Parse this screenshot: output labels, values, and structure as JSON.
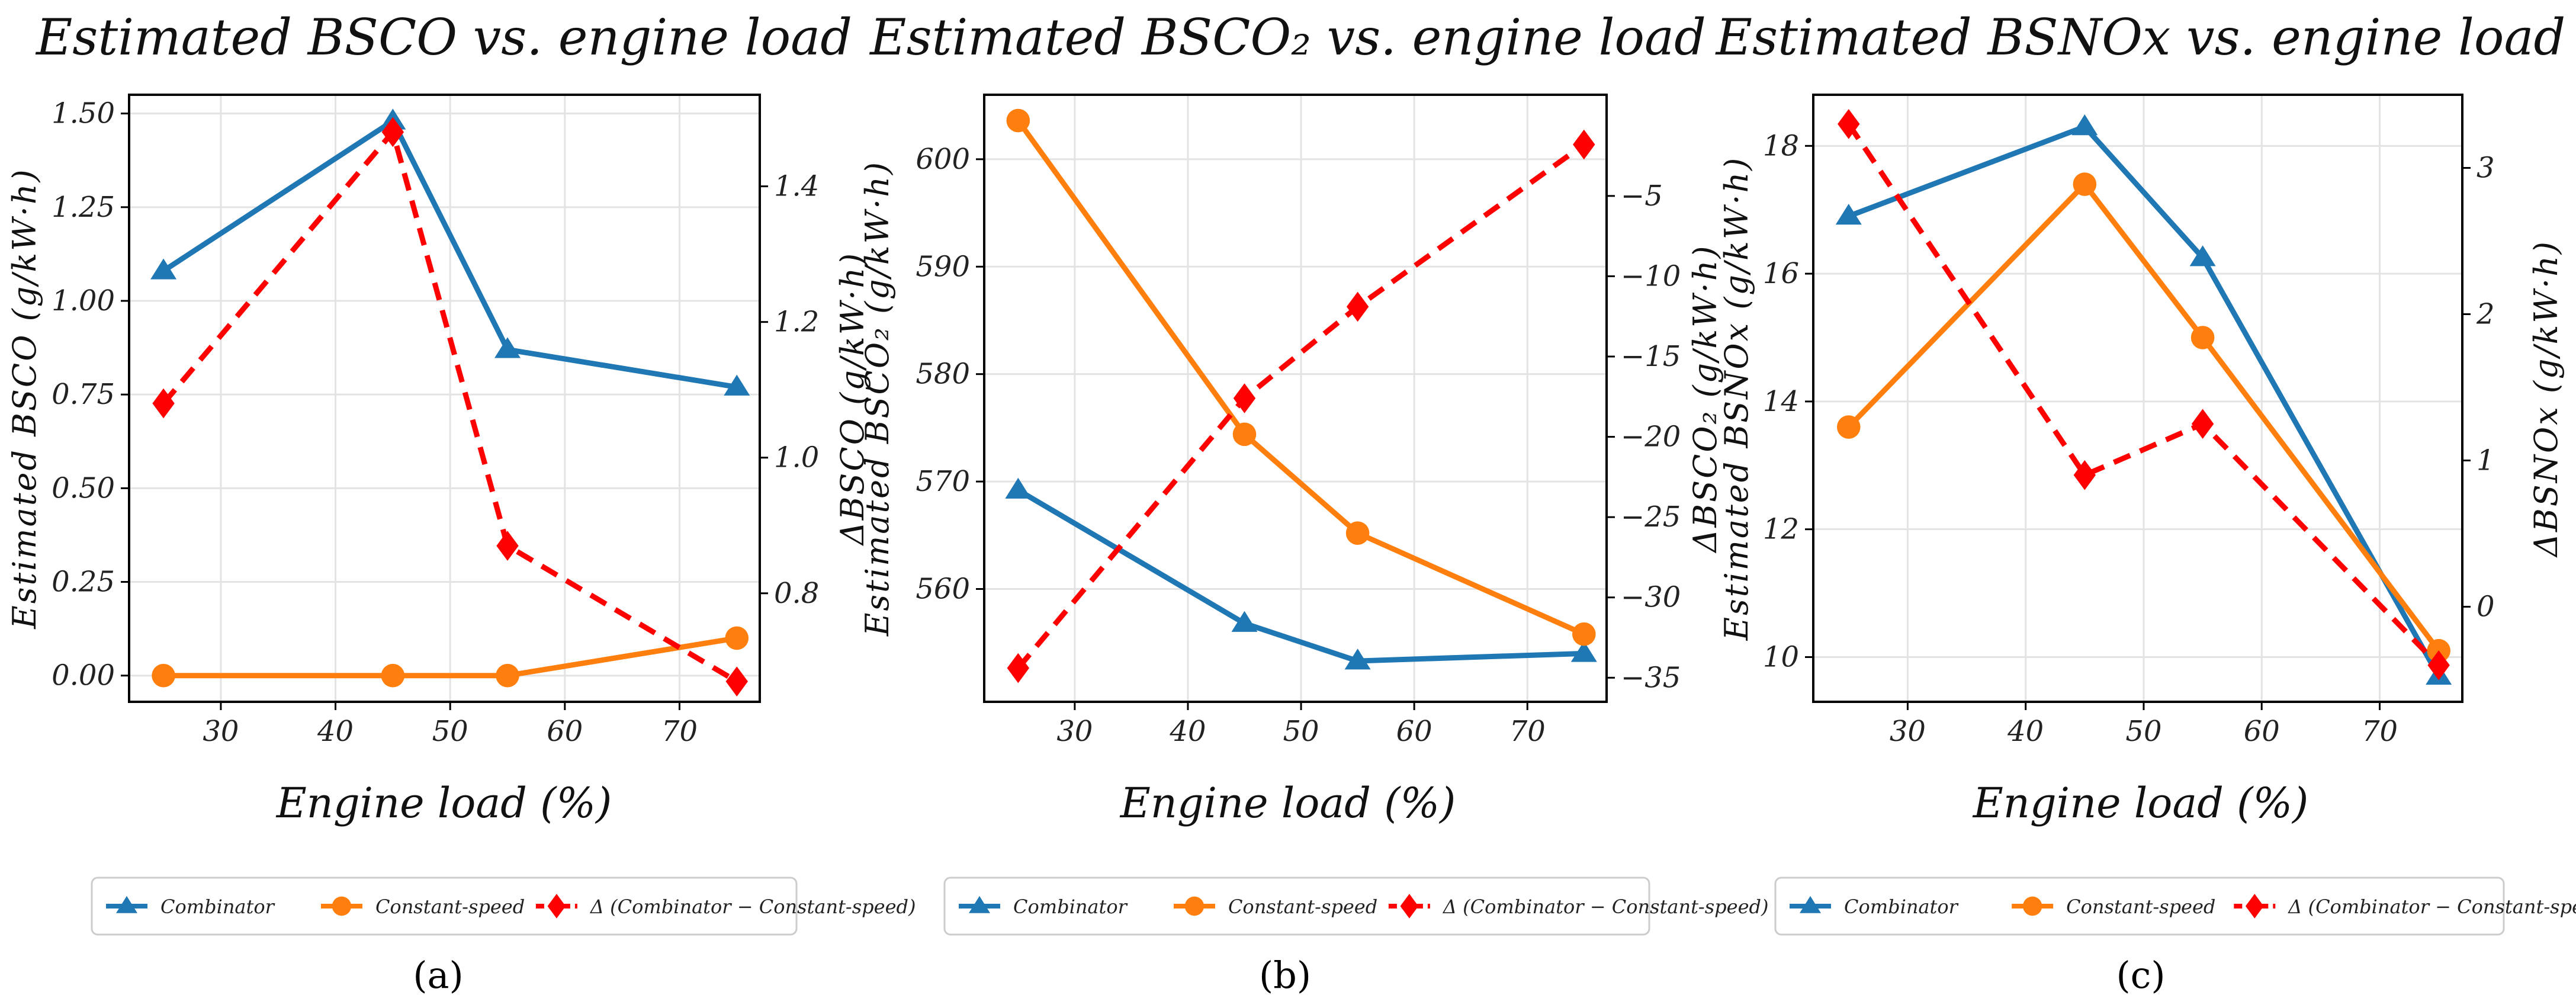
{
  "chart_data": [
    {
      "type": "line",
      "title": "Estimated BSCO vs. engine load",
      "xlabel": "Engine load (%)",
      "ylabel": "Estimated BSCO (g/kW·h)",
      "y2label": "ΔBSCO (g/kW·h)",
      "panel_label": "(a)",
      "x": [
        25,
        45,
        55,
        75
      ],
      "xlim": [
        22,
        77
      ],
      "xticks": [
        30,
        40,
        50,
        60,
        70
      ],
      "ylim": [
        -0.07,
        1.55
      ],
      "yticks": [
        0.0,
        0.25,
        0.5,
        0.75,
        1.0,
        1.25,
        1.5
      ],
      "ytick_labels": [
        "0.00",
        "0.25",
        "0.50",
        "0.75",
        "1.00",
        "1.25",
        "1.50"
      ],
      "y2lim": [
        0.64,
        1.535
      ],
      "y2ticks": [
        0.8,
        1.0,
        1.2,
        1.4
      ],
      "y2tick_labels": [
        "0.8",
        "1.0",
        "1.2",
        "1.4"
      ],
      "series": [
        {
          "name": "Combinator",
          "axis": "left",
          "values": [
            1.08,
            1.48,
            0.87,
            0.77
          ]
        },
        {
          "name": "Constant-speed",
          "axis": "left",
          "values": [
            0.0,
            0.0,
            0.0,
            0.1
          ]
        },
        {
          "name": "Δ (Combinator − Constant-speed)",
          "axis": "right",
          "values": [
            1.08,
            1.48,
            0.87,
            0.67
          ]
        }
      ],
      "grid": true,
      "legend_position": "bottom"
    },
    {
      "type": "line",
      "title": "Estimated BSCO₂ vs. engine load",
      "xlabel": "Engine load (%)",
      "ylabel": "Estimated BSCO₂ (g/kW·h)",
      "y2label": "ΔBSCO₂ (g/kW·h)",
      "panel_label": "(b)",
      "x": [
        25,
        45,
        55,
        75
      ],
      "xlim": [
        22,
        77
      ],
      "xticks": [
        30,
        40,
        50,
        60,
        70
      ],
      "ylim": [
        549.5,
        606
      ],
      "yticks": [
        560,
        570,
        580,
        590,
        600
      ],
      "ytick_labels": [
        "560",
        "570",
        "580",
        "590",
        "600"
      ],
      "y2lim": [
        -36.5,
        1.3
      ],
      "y2ticks": [
        -35,
        -30,
        -25,
        -20,
        -15,
        -10,
        -5
      ],
      "y2tick_labels": [
        "−35",
        "−30",
        "−25",
        "−20",
        "−15",
        "−10",
        "−5"
      ],
      "series": [
        {
          "name": "Combinator",
          "axis": "left",
          "values": [
            569.2,
            556.8,
            553.3,
            554.0
          ]
        },
        {
          "name": "Constant-speed",
          "axis": "left",
          "values": [
            603.6,
            574.4,
            565.2,
            555.8
          ]
        },
        {
          "name": "Δ (Combinator − Constant-speed)",
          "axis": "right",
          "values": [
            -34.4,
            -17.6,
            -11.9,
            -1.8
          ]
        }
      ],
      "grid": true,
      "legend_position": "bottom"
    },
    {
      "type": "line",
      "title": "Estimated BSNOx vs. engine load",
      "xlabel": "Engine load (%)",
      "ylabel": "Estimated BSNOx (g/kW·h)",
      "y2label": "ΔBSNOx (g/kW·h)",
      "panel_label": "(c)",
      "x": [
        25,
        45,
        55,
        75
      ],
      "xlim": [
        22,
        77
      ],
      "xticks": [
        30,
        40,
        50,
        60,
        70
      ],
      "ylim": [
        9.3,
        18.8
      ],
      "yticks": [
        10,
        12,
        14,
        16,
        18
      ],
      "ytick_labels": [
        "10",
        "12",
        "14",
        "16",
        "18"
      ],
      "y2lim": [
        -0.65,
        3.5
      ],
      "y2ticks": [
        0,
        1,
        2,
        3
      ],
      "y2tick_labels": [
        "0",
        "1",
        "2",
        "3"
      ],
      "series": [
        {
          "name": "Combinator",
          "axis": "left",
          "values": [
            16.9,
            18.3,
            16.25,
            9.7
          ]
        },
        {
          "name": "Constant-speed",
          "axis": "left",
          "values": [
            13.6,
            17.4,
            15.0,
            10.1
          ]
        },
        {
          "name": "Δ (Combinator − Constant-speed)",
          "axis": "right",
          "values": [
            3.3,
            0.9,
            1.25,
            -0.4
          ]
        }
      ],
      "grid": true,
      "legend_position": "bottom"
    }
  ],
  "legend": {
    "items": [
      "Combinator",
      "Constant-speed",
      "Δ (Combinator − Constant-speed)"
    ]
  },
  "colors": {
    "combinator": "#1f77b4",
    "constant_speed": "#ff7f0e",
    "delta": "#ff0000",
    "grid": "#e3e3e3",
    "axis": "#000000"
  },
  "icons": {
    "combinator_marker": "triangle-icon",
    "constant_speed_marker": "circle-icon",
    "delta_marker": "diamond-icon"
  }
}
